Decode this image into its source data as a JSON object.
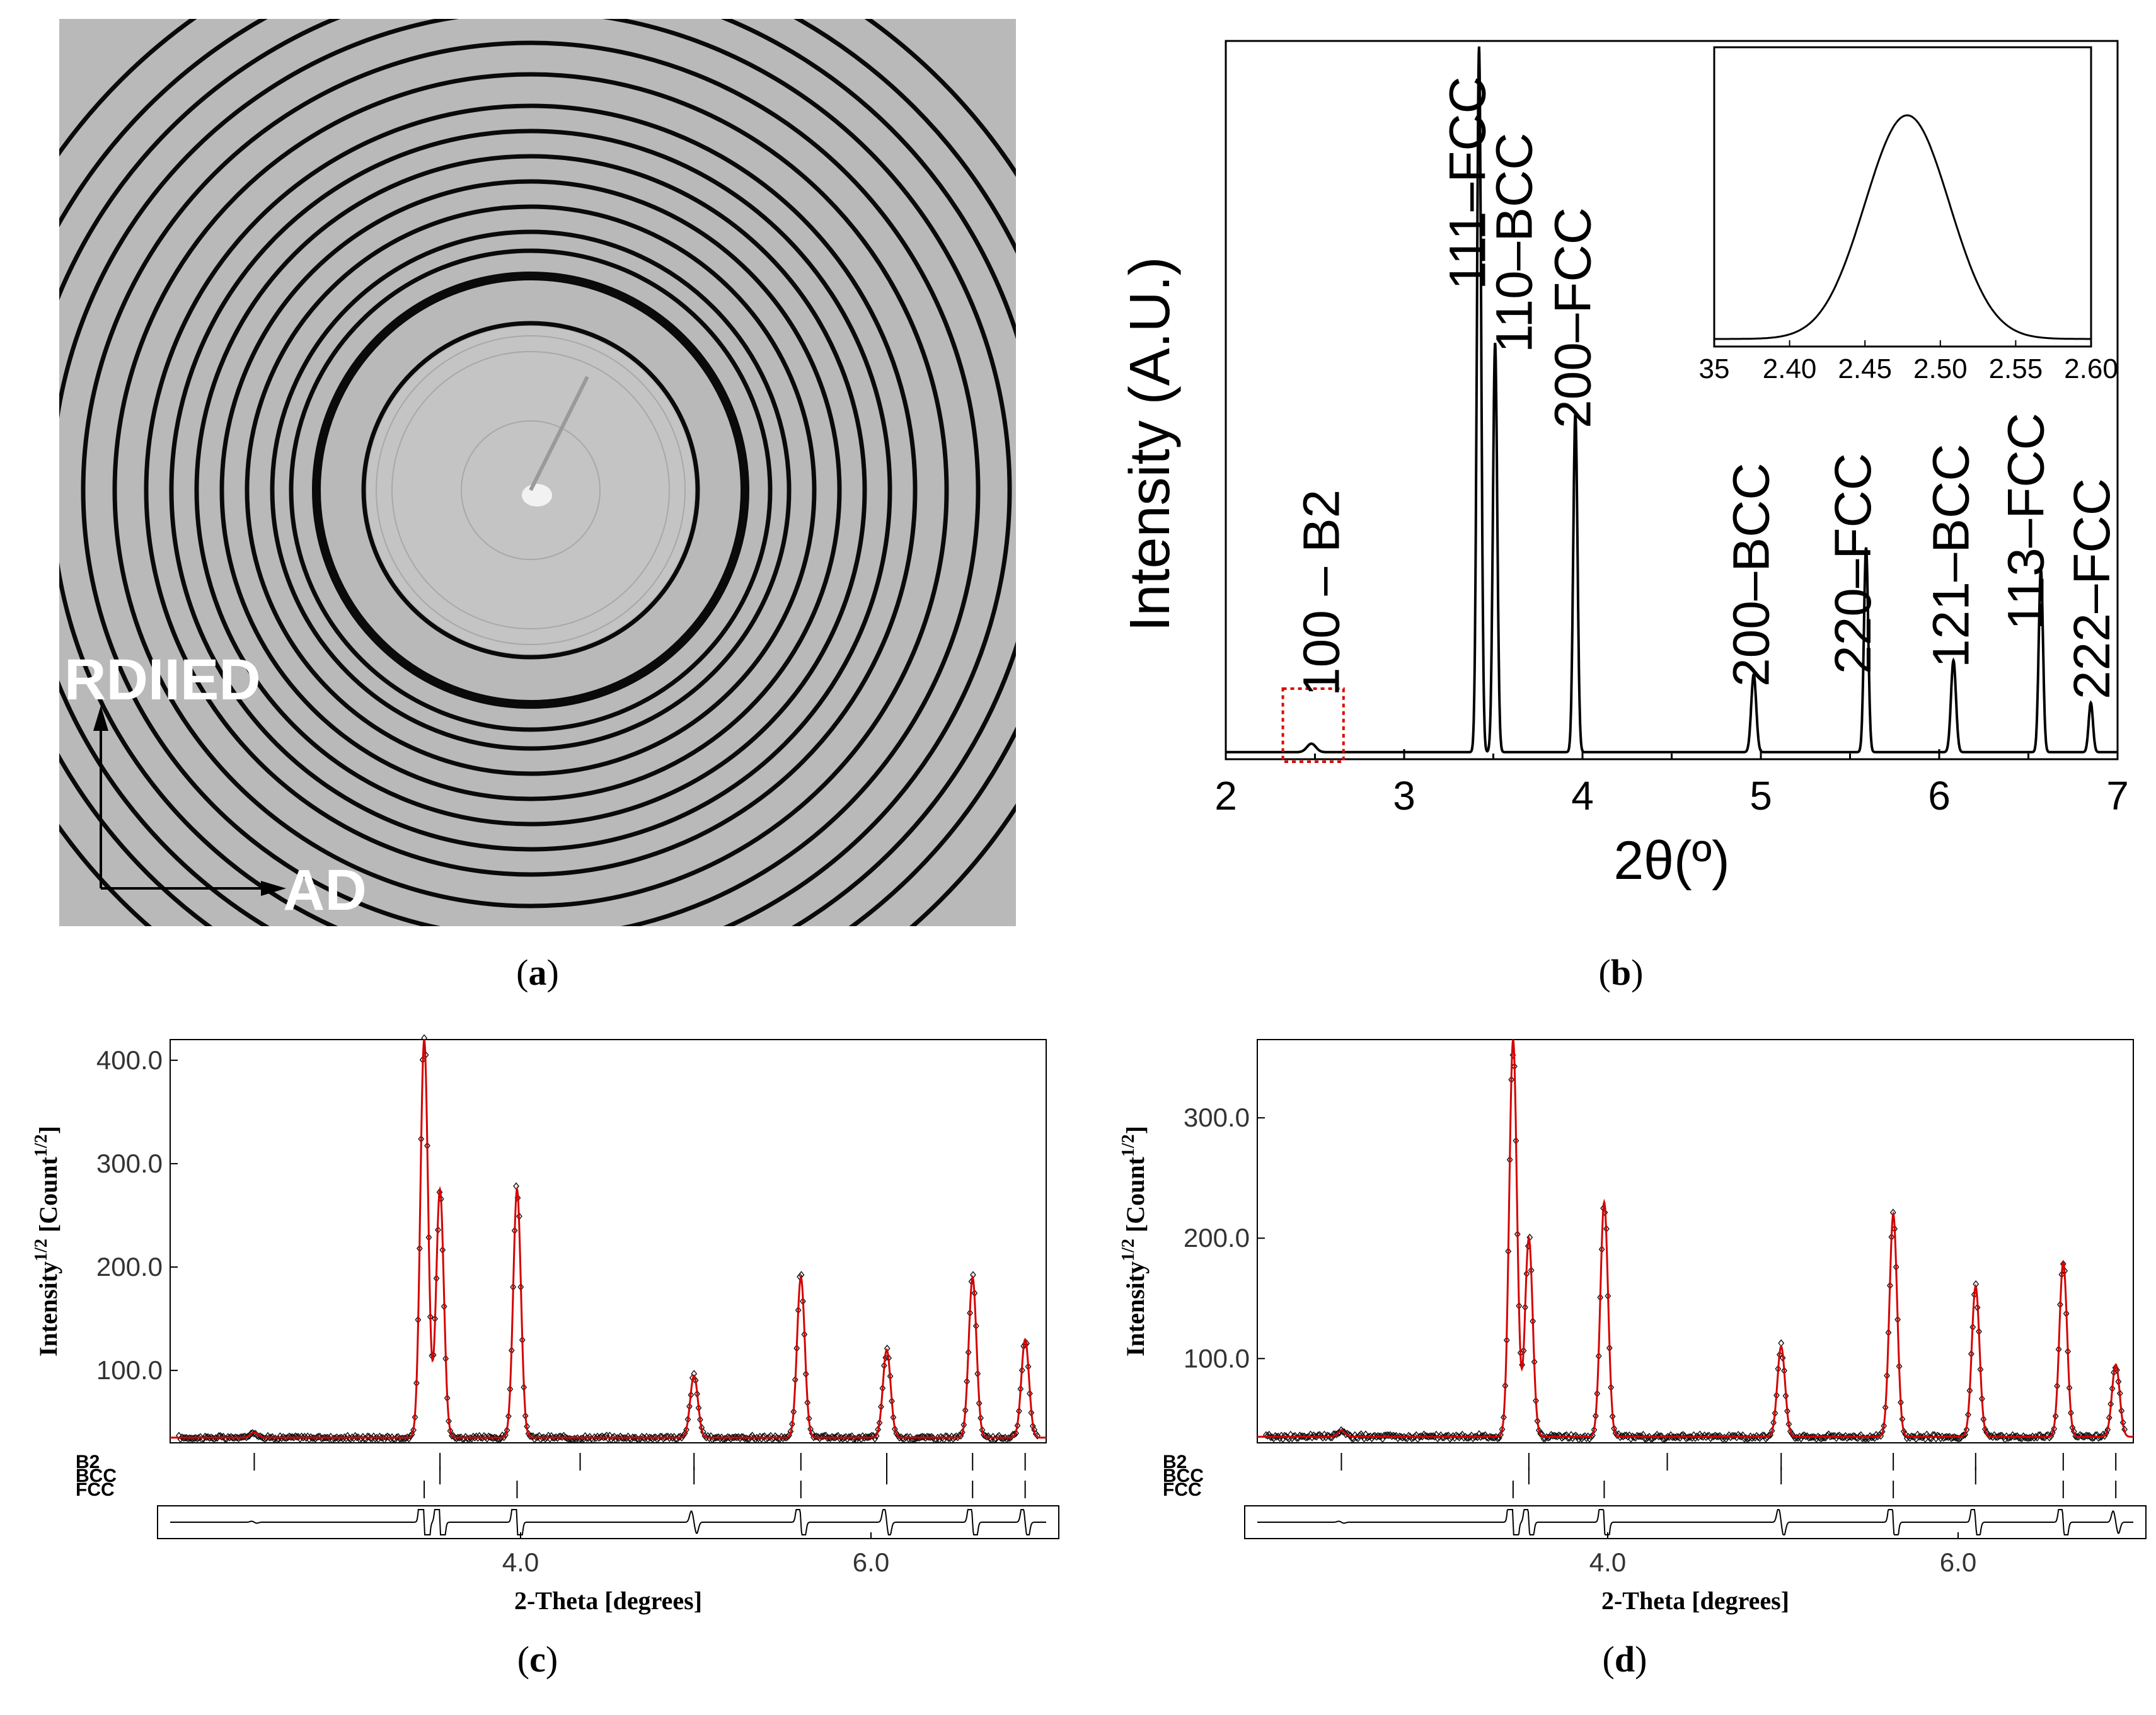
{
  "panels": {
    "a": {
      "caption_letter": "a",
      "label_vertical": "RDIIED",
      "label_horizontal": "AD",
      "ring_radii_frac": [
        0.11,
        0.22,
        0.245,
        0.265,
        0.34,
        0.38,
        0.41,
        0.45,
        0.49,
        0.53,
        0.57,
        0.61,
        0.66,
        0.71,
        0.76,
        0.81,
        0.86,
        0.92
      ]
    },
    "b": {
      "caption_letter": "b"
    },
    "c": {
      "caption_letter": "c"
    },
    "d": {
      "caption_letter": "d"
    }
  },
  "chart_data": [
    {
      "id": "b",
      "type": "line",
      "ylabel": "Intensity (A.U.)",
      "xlabel": "2θ(º)",
      "xlim": [
        2,
        7
      ],
      "xticks": [
        "2",
        "3",
        "4",
        "5",
        "6",
        "7"
      ],
      "y_normalized_range": [
        0,
        1
      ],
      "baseline": 0.01,
      "peaks": [
        {
          "x": 2.48,
          "y": 0.012,
          "w": 0.025
        },
        {
          "x": 3.42,
          "y": 1.0,
          "w": 0.012
        },
        {
          "x": 3.51,
          "y": 0.58,
          "w": 0.012
        },
        {
          "x": 3.96,
          "y": 0.48,
          "w": 0.012
        },
        {
          "x": 4.96,
          "y": 0.11,
          "w": 0.014
        },
        {
          "x": 5.59,
          "y": 0.29,
          "w": 0.012
        },
        {
          "x": 6.08,
          "y": 0.13,
          "w": 0.014
        },
        {
          "x": 6.57,
          "y": 0.26,
          "w": 0.012
        },
        {
          "x": 6.85,
          "y": 0.07,
          "w": 0.012
        }
      ],
      "annotations": [
        {
          "text": "100 – B2",
          "x": 2.55
        },
        {
          "text": "111–FCC",
          "x": 3.37
        },
        {
          "text": "110–BCC",
          "x": 3.63
        },
        {
          "text": "200–FCC",
          "x": 3.96
        },
        {
          "text": "200–BCC",
          "x": 4.96
        },
        {
          "text": "220–FCC",
          "x": 5.53
        },
        {
          "text": "121–BCC",
          "x": 6.08
        },
        {
          "text": "113–FCC",
          "x": 6.5
        },
        {
          "text": "222–FCC",
          "x": 6.87
        }
      ],
      "inset": {
        "xlim": [
          2.35,
          2.6
        ],
        "xticks": [
          "35",
          "2.40",
          "2.45",
          "2.50",
          "2.55",
          "2.60"
        ],
        "peak": {
          "x": 2.478,
          "sigma": 0.028
        }
      },
      "highlight_box": {
        "x": [
          2.32,
          2.66
        ]
      }
    },
    {
      "id": "c",
      "type": "line",
      "ylabel_main": "Intensity",
      "ylabel_sup1": "1/2",
      "ylabel_mid": "[Count",
      "ylabel_sup2": "1/2",
      "ylabel_end": "]",
      "xlabel": "2-Theta [degrees]",
      "xlim": [
        2.0,
        7.0
      ],
      "ylim": [
        30,
        420
      ],
      "yticks": [
        "100.0",
        "200.0",
        "300.0",
        "400.0"
      ],
      "ytick_values": [
        100,
        200,
        300,
        400
      ],
      "xticks": [
        "4.0",
        "6.0"
      ],
      "xtick_values": [
        4.0,
        6.0
      ],
      "baseline": 35,
      "peaks": [
        {
          "x": 2.48,
          "y": 5
        },
        {
          "x": 3.45,
          "y": 385
        },
        {
          "x": 3.54,
          "y": 240
        },
        {
          "x": 3.98,
          "y": 240
        },
        {
          "x": 4.99,
          "y": 60
        },
        {
          "x": 5.6,
          "y": 155
        },
        {
          "x": 6.09,
          "y": 85
        },
        {
          "x": 6.58,
          "y": 155
        },
        {
          "x": 6.88,
          "y": 95
        }
      ],
      "phases": [
        "B2",
        "BCC",
        "FCC"
      ],
      "tick_rows": {
        "B2": [
          2.48,
          3.54,
          4.34,
          4.99,
          5.6,
          6.09,
          6.58,
          6.88
        ],
        "BCC": [
          3.54,
          4.99,
          6.09
        ],
        "FCC": [
          3.45,
          3.98,
          5.6,
          6.58,
          6.88
        ]
      }
    },
    {
      "id": "d",
      "type": "line",
      "ylabel_main": "Intensity",
      "ylabel_sup1": "1/2",
      "ylabel_mid": "[Count",
      "ylabel_sup2": "1/2",
      "ylabel_end": "]",
      "xlabel": "2-Theta [degrees]",
      "xlim": [
        2.0,
        7.0
      ],
      "ylim": [
        30,
        365
      ],
      "yticks": [
        "100.0",
        "200.0",
        "300.0"
      ],
      "ytick_values": [
        100,
        200,
        300
      ],
      "xticks": [
        "4.0",
        "6.0"
      ],
      "xtick_values": [
        4.0,
        6.0
      ],
      "baseline": 35,
      "peaks": [
        {
          "x": 2.48,
          "y": 5
        },
        {
          "x": 3.46,
          "y": 330
        },
        {
          "x": 3.55,
          "y": 165
        },
        {
          "x": 3.98,
          "y": 195
        },
        {
          "x": 4.99,
          "y": 75
        },
        {
          "x": 5.63,
          "y": 185
        },
        {
          "x": 6.1,
          "y": 125
        },
        {
          "x": 6.6,
          "y": 145
        },
        {
          "x": 6.9,
          "y": 60
        }
      ],
      "phases": [
        "B2",
        "BCC",
        "FCC"
      ],
      "tick_rows": {
        "B2": [
          2.48,
          3.55,
          4.34,
          4.99,
          5.63,
          6.1,
          6.6,
          6.9
        ],
        "BCC": [
          3.55,
          4.99,
          6.1
        ],
        "FCC": [
          3.46,
          3.98,
          5.63,
          6.6,
          6.9
        ]
      }
    }
  ]
}
